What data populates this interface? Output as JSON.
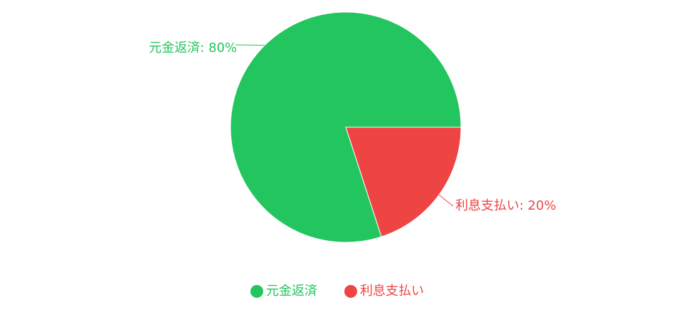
{
  "chart_data": {
    "type": "pie",
    "categories": [
      "元金返済",
      "利息支払い"
    ],
    "values": [
      80,
      20
    ],
    "colors": [
      "#22c55e",
      "#ef4444"
    ],
    "slice_labels": [
      "元金返済: 80%",
      "利息支払い: 20%"
    ],
    "legend": {
      "placement": "bottom",
      "items": [
        "元金返済",
        "利息支払い"
      ]
    }
  }
}
